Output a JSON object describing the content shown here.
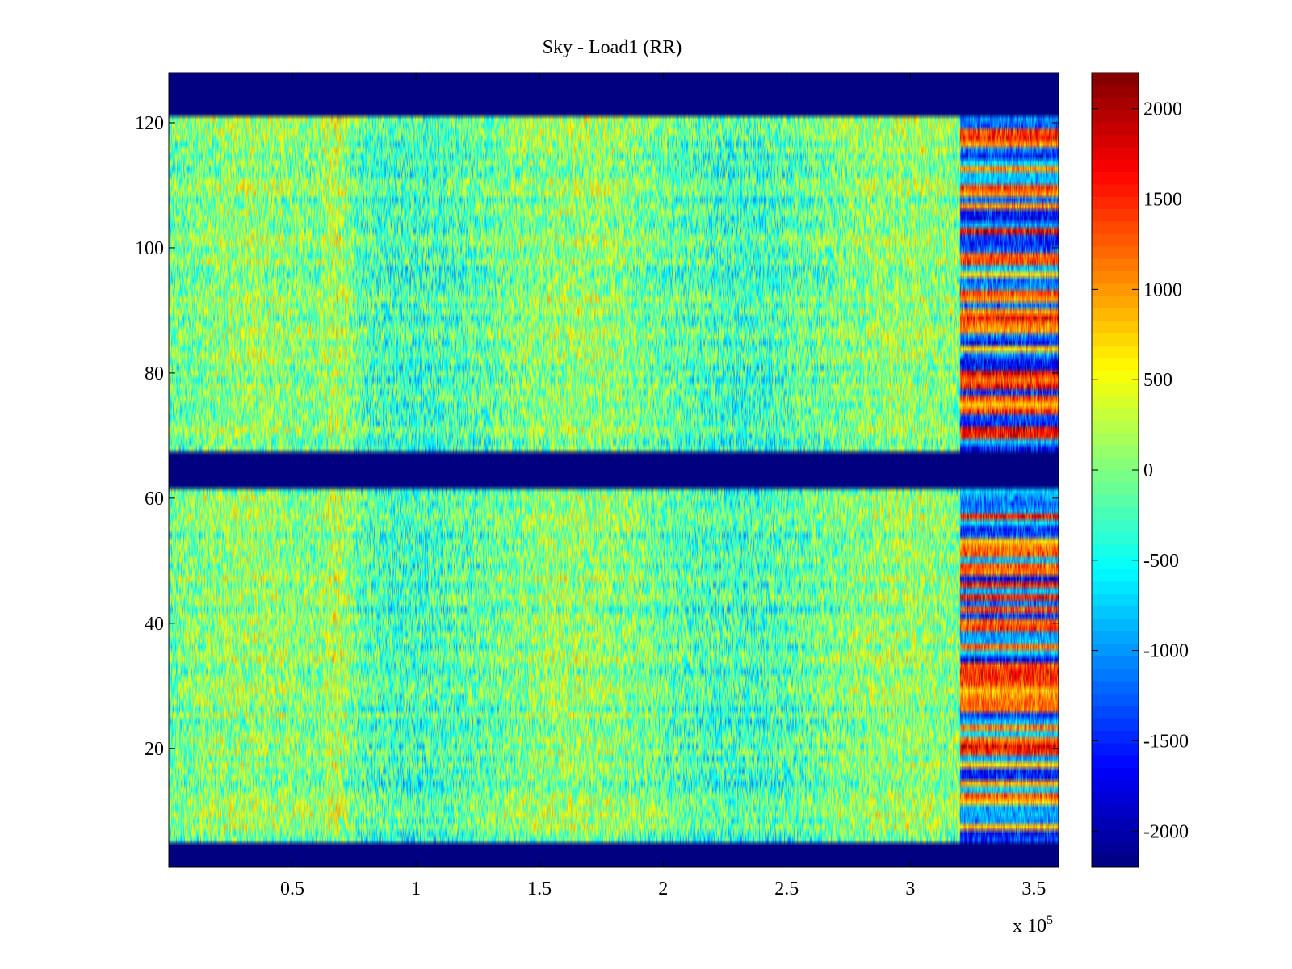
{
  "chart_data": {
    "type": "heatmap",
    "title": "Sky - Load1 (RR)",
    "colormap": "jet",
    "x_range": [
      0,
      360000
    ],
    "y_range": [
      1,
      128
    ],
    "x_ticks": [
      {
        "value": 50000,
        "label": "0.5"
      },
      {
        "value": 100000,
        "label": "1"
      },
      {
        "value": 150000,
        "label": "1.5"
      },
      {
        "value": 200000,
        "label": "2"
      },
      {
        "value": 250000,
        "label": "2.5"
      },
      {
        "value": 300000,
        "label": "3"
      },
      {
        "value": 350000,
        "label": "3.5"
      }
    ],
    "x_multiplier": {
      "base": "x 10",
      "exponent": "5"
    },
    "y_ticks": [
      {
        "value": 20,
        "label": "20"
      },
      {
        "value": 40,
        "label": "40"
      },
      {
        "value": 60,
        "label": "60"
      },
      {
        "value": 80,
        "label": "80"
      },
      {
        "value": 100,
        "label": "100"
      },
      {
        "value": 120,
        "label": "120"
      }
    ],
    "colorbar": {
      "range": [
        -2200,
        2200
      ],
      "ticks": [
        {
          "value": 2000,
          "label": "2000"
        },
        {
          "value": 1500,
          "label": "1500"
        },
        {
          "value": 1000,
          "label": "1000"
        },
        {
          "value": 500,
          "label": "500"
        },
        {
          "value": 0,
          "label": "0"
        },
        {
          "value": -500,
          "label": "-500"
        },
        {
          "value": -1000,
          "label": "-1000"
        },
        {
          "value": -1500,
          "label": "-1500"
        },
        {
          "value": -2000,
          "label": "-2000"
        }
      ]
    },
    "masked_row_bands": [
      [
        1,
        4
      ],
      [
        62,
        67
      ],
      [
        122,
        128
      ]
    ],
    "mask_value": -2200,
    "noisy_column_start": 320000,
    "base_value": -100,
    "noise_amplitude": 700
  }
}
